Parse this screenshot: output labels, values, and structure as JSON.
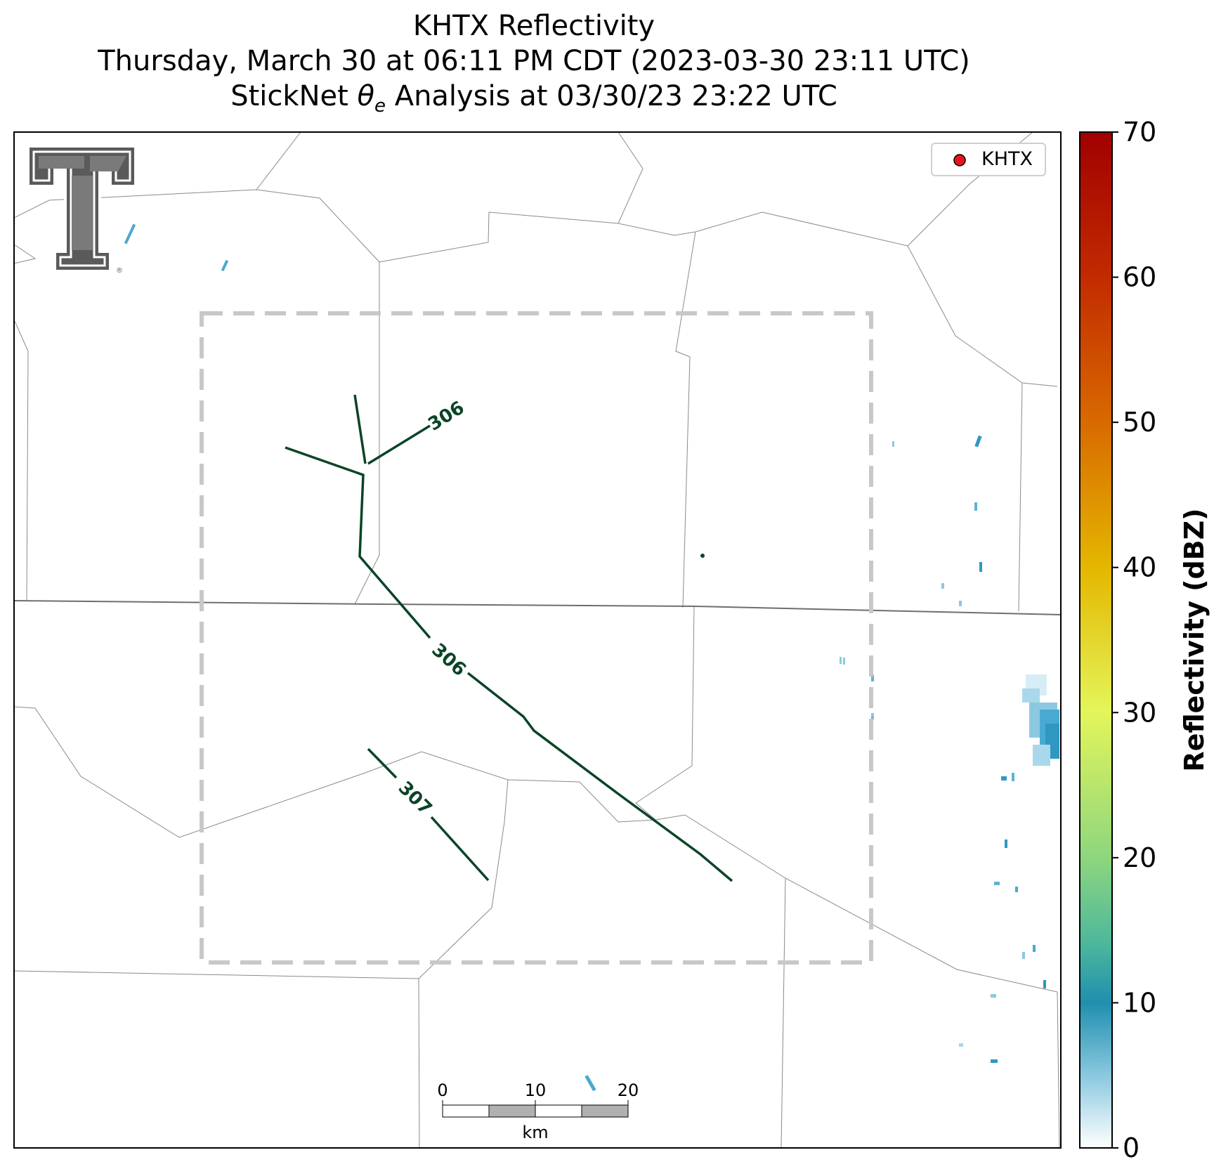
{
  "title": {
    "line1": "KHTX Reflectivity",
    "line2": "Thursday, March 30 at 06:11 PM CDT (2023-03-30 23:11 UTC)",
    "line3_prefix": "StickNet ",
    "line3_symbol": "θ",
    "line3_subscript": "e",
    "line3_suffix": " Analysis at 03/30/23 23:22 UTC"
  },
  "legend": {
    "label": "KHTX",
    "marker_color": "#e8141e"
  },
  "colorbar": {
    "label": "Reflectivity (dBZ)",
    "range": [
      0,
      70
    ],
    "ticks": [
      "0",
      "10",
      "20",
      "30",
      "40",
      "50",
      "60",
      "70"
    ],
    "colors": [
      "#ffffff",
      "#1a8fb0",
      "#7bc98a",
      "#e4f55a",
      "#e5b400",
      "#d26300",
      "#c22b00",
      "#a10000"
    ]
  },
  "contours": {
    "color": "#0a4426",
    "labels": [
      "306",
      "306",
      "307"
    ]
  },
  "scale_bar": {
    "ticks": [
      "0",
      "10",
      "20"
    ],
    "unit": "km"
  },
  "logo": {
    "name": "Texas Tech Double T",
    "mark": "®"
  },
  "colors": {
    "boundary_box": "#c8c8c8",
    "county_lines": "#8a8a8a",
    "state_line": "#6e6e6e"
  }
}
